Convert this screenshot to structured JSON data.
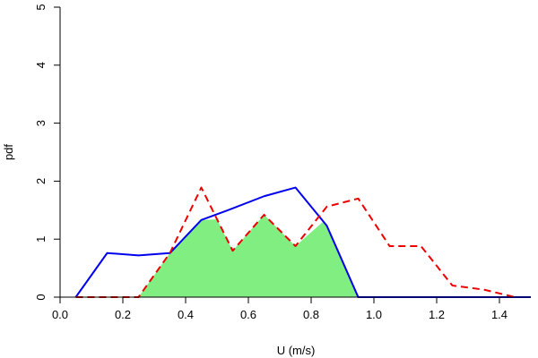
{
  "chart_data": {
    "type": "line",
    "title": "",
    "xlabel": "U (m/s)",
    "ylabel": "pdf",
    "xlim": [
      0.0,
      1.5
    ],
    "ylim": [
      0,
      5
    ],
    "xticks": [
      0.0,
      0.2,
      0.4,
      0.6,
      0.8,
      1.0,
      1.2,
      1.4
    ],
    "xtick_labels": [
      "0.0",
      "0.2",
      "0.4",
      "0.6",
      "0.8",
      "1.0",
      "1.2",
      "1.4"
    ],
    "yticks": [
      0,
      1,
      2,
      3,
      4,
      5
    ],
    "ytick_labels": [
      "0",
      "1",
      "2",
      "3",
      "4",
      "5"
    ],
    "grid": false,
    "legend": "none",
    "series": [
      {
        "style": "solid",
        "color": "#0000ee",
        "x": [
          0.05,
          0.15,
          0.25,
          0.35,
          0.45,
          0.55,
          0.65,
          0.75,
          0.85,
          0.95,
          1.05,
          1.15,
          1.25,
          1.35,
          1.45,
          1.5
        ],
        "y": [
          0.0,
          0.76,
          0.72,
          0.76,
          1.33,
          1.53,
          1.74,
          1.89,
          1.23,
          0.0,
          0.0,
          0.0,
          0.0,
          0.0,
          0.0,
          0.0
        ]
      },
      {
        "style": "dashed",
        "color": "#ee0000",
        "x": [
          0.05,
          0.15,
          0.25,
          0.35,
          0.45,
          0.55,
          0.65,
          0.75,
          0.85,
          0.95,
          1.05,
          1.15,
          1.25,
          1.35,
          1.45
        ],
        "y": [
          0.0,
          0.0,
          0.0,
          0.76,
          1.89,
          0.8,
          1.42,
          0.88,
          1.56,
          1.7,
          0.88,
          0.88,
          0.2,
          0.13,
          0.0
        ]
      }
    ],
    "overlap_fill": {
      "color": "#80ee80",
      "description_of": "pointwise minimum of the two curves",
      "x": [
        0.25,
        0.35,
        0.45,
        0.5,
        0.55,
        0.65,
        0.75,
        0.84,
        0.85,
        0.95
      ],
      "y": [
        0.0,
        0.76,
        1.33,
        1.34,
        0.8,
        1.42,
        0.88,
        1.31,
        1.23,
        0.0
      ]
    }
  }
}
